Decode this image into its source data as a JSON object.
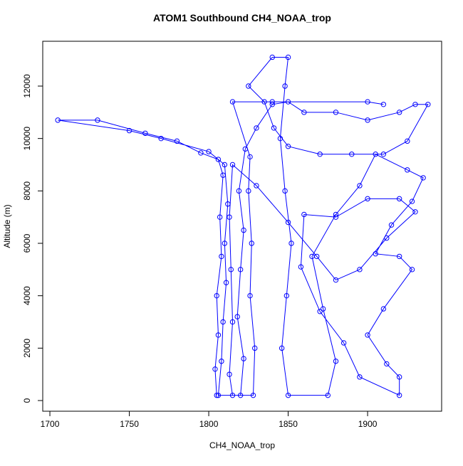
{
  "chart_data": {
    "type": "line",
    "title": "ATOM1 Southbound CH4_NOAA_trop",
    "x_label": "CH4_NOAA_trop",
    "y_label": "Altitude (m)",
    "color": "#0000ff",
    "marker": "open-circle",
    "xlim": [
      1695.5,
      1946.6
    ],
    "ylim": [
      -407,
      13710
    ],
    "xticks": [
      1700,
      1750,
      1800,
      1850,
      1900
    ],
    "yticks": [
      0,
      2000,
      4000,
      6000,
      8000,
      10000,
      12000
    ],
    "x": [
      1805,
      1804,
      1806,
      1805,
      1808,
      1807,
      1809,
      1806,
      1795,
      1780,
      1760,
      1730,
      1705,
      1750,
      1770,
      1800,
      1810,
      1812,
      1810,
      1811,
      1809,
      1808,
      1806,
      1820,
      1822,
      1818,
      1820,
      1822,
      1819,
      1823,
      1830,
      1840,
      1850,
      1860,
      1880,
      1900,
      1920,
      1930,
      1938,
      1925,
      1910,
      1890,
      1870,
      1850,
      1841,
      1835,
      1825,
      1840,
      1850,
      1848,
      1845,
      1848,
      1852,
      1849,
      1846,
      1850,
      1875,
      1880,
      1872,
      1865,
      1880,
      1895,
      1905,
      1925,
      1935,
      1928,
      1915,
      1905,
      1920,
      1928,
      1910,
      1900,
      1912,
      1920,
      1920,
      1895,
      1885,
      1870,
      1858,
      1860,
      1880,
      1900,
      1920,
      1930,
      1912,
      1895,
      1880,
      1868,
      1850,
      1830,
      1815,
      1813,
      1814,
      1815,
      1813,
      1815,
      1828,
      1829,
      1826,
      1827,
      1825,
      1826,
      1815,
      1840,
      1900,
      1910
    ],
    "values": [
      200,
      1200,
      2500,
      4000,
      5500,
      7000,
      8600,
      9200,
      9450,
      9900,
      10200,
      10700,
      10700,
      10300,
      10000,
      9500,
      9000,
      7500,
      6000,
      4500,
      3000,
      1500,
      200,
      200,
      1600,
      3200,
      5000,
      6500,
      8000,
      9600,
      10400,
      11300,
      11400,
      11000,
      11000,
      10700,
      11000,
      11300,
      11300,
      9900,
      9400,
      9400,
      9400,
      9700,
      10400,
      11400,
      12000,
      13100,
      13100,
      12000,
      10000,
      8000,
      6000,
      4000,
      2000,
      200,
      200,
      1500,
      3500,
      5500,
      7100,
      8200,
      9400,
      8800,
      8500,
      7600,
      6700,
      5600,
      5500,
      5000,
      3500,
      2500,
      1400,
      900,
      200,
      900,
      2200,
      3400,
      5100,
      7100,
      7000,
      7700,
      7700,
      7200,
      6200,
      5000,
      4600,
      5500,
      6800,
      8200,
      9000,
      7000,
      5000,
      3000,
      1000,
      200,
      200,
      2000,
      4000,
      6000,
      8000,
      9300,
      11400,
      11400,
      11400,
      11300
    ]
  }
}
